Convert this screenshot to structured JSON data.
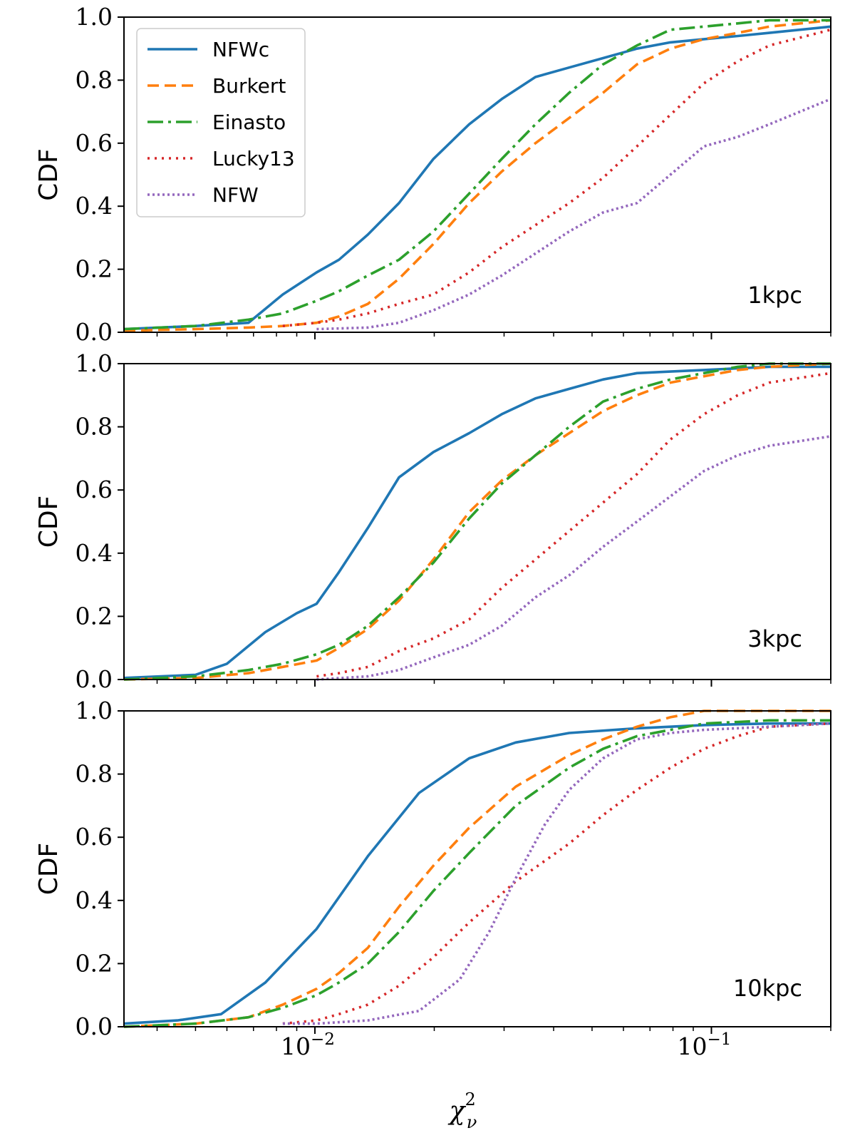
{
  "chart_data": [
    {
      "type": "line",
      "annotation": "1kpc",
      "ylabel": "CDF",
      "xlabel": "",
      "xscale": "log",
      "xlim": [
        0.0033,
        0.2
      ],
      "ylim": [
        0.0,
        1.0
      ],
      "yticks": [
        "0.0",
        "0.2",
        "0.4",
        "0.6",
        "0.8",
        "1.0"
      ],
      "xticks": [],
      "legend": {
        "placement": "upper-left",
        "entries": [
          "NFWc",
          "Burkert",
          "Einasto",
          "Lucky13",
          "NFW"
        ]
      },
      "series": [
        {
          "name": "NFWc",
          "x": [
            0.0033,
            0.005,
            0.0068,
            0.0083,
            0.0101,
            0.0115,
            0.0136,
            0.0163,
            0.0199,
            0.0245,
            0.0296,
            0.036,
            0.0438,
            0.0533,
            0.0649,
            0.0788,
            0.0958,
            0.1165,
            0.14,
            0.2
          ],
          "values": [
            0.01,
            0.02,
            0.03,
            0.12,
            0.19,
            0.23,
            0.31,
            0.41,
            0.55,
            0.66,
            0.74,
            0.81,
            0.84,
            0.87,
            0.9,
            0.92,
            0.93,
            0.94,
            0.95,
            0.97
          ]
        }
      ]
    }
  ],
  "panels": [
    {
      "annotation": "1kpc",
      "series": [
        {
          "name": "NFWc",
          "color": "#1f77b4",
          "dash": "",
          "x": [
            0.0033,
            0.005,
            0.0068,
            0.0083,
            0.0101,
            0.0115,
            0.0136,
            0.0163,
            0.0199,
            0.0245,
            0.0296,
            0.036,
            0.0438,
            0.0533,
            0.0649,
            0.0788,
            0.0958,
            0.1165,
            0.14,
            0.2
          ],
          "y": [
            0.01,
            0.02,
            0.03,
            0.12,
            0.19,
            0.23,
            0.31,
            0.41,
            0.55,
            0.66,
            0.74,
            0.81,
            0.84,
            0.87,
            0.9,
            0.92,
            0.93,
            0.94,
            0.95,
            0.97
          ]
        },
        {
          "name": "Burkert",
          "color": "#ff7f0e",
          "dash": "",
          "x": [
            0.0033,
            0.005,
            0.0068,
            0.0083,
            0.0101,
            0.0115,
            0.0136,
            0.0163,
            0.0199,
            0.0245,
            0.0296,
            0.036,
            0.0438,
            0.0533,
            0.0649,
            0.0788,
            0.0958,
            0.1165,
            0.14,
            0.2
          ],
          "y": [
            0.005,
            0.01,
            0.015,
            0.02,
            0.03,
            0.05,
            0.09,
            0.17,
            0.28,
            0.41,
            0.51,
            0.6,
            0.68,
            0.76,
            0.85,
            0.9,
            0.93,
            0.95,
            0.97,
            0.99
          ]
        },
        {
          "name": "Einasto",
          "color": "#2ca02c",
          "dash": "",
          "x": [
            0.0033,
            0.005,
            0.0068,
            0.0083,
            0.0101,
            0.0115,
            0.0136,
            0.0163,
            0.0199,
            0.0245,
            0.0296,
            0.036,
            0.0438,
            0.0533,
            0.0649,
            0.0788,
            0.0958,
            0.1165,
            0.14,
            0.2
          ],
          "y": [
            0.01,
            0.02,
            0.04,
            0.06,
            0.1,
            0.13,
            0.18,
            0.23,
            0.32,
            0.44,
            0.55,
            0.66,
            0.76,
            0.85,
            0.91,
            0.96,
            0.97,
            0.98,
            0.99,
            0.99
          ]
        },
        {
          "name": "Lucky13",
          "color": "#d62728",
          "dash": "",
          "x": [
            0.0083,
            0.0101,
            0.0115,
            0.0136,
            0.0163,
            0.0199,
            0.0245,
            0.0296,
            0.036,
            0.0438,
            0.0533,
            0.0649,
            0.0788,
            0.0958,
            0.1165,
            0.14,
            0.2
          ],
          "y": [
            0.02,
            0.03,
            0.04,
            0.06,
            0.09,
            0.12,
            0.19,
            0.27,
            0.34,
            0.41,
            0.49,
            0.59,
            0.69,
            0.79,
            0.86,
            0.91,
            0.96
          ]
        },
        {
          "name": "NFW",
          "color": "#9467bd",
          "dash": "",
          "x": [
            0.0101,
            0.0136,
            0.0163,
            0.0199,
            0.0245,
            0.0296,
            0.036,
            0.0438,
            0.0533,
            0.0649,
            0.0788,
            0.0958,
            0.1165,
            0.14,
            0.2
          ],
          "y": [
            0.01,
            0.015,
            0.03,
            0.07,
            0.12,
            0.18,
            0.25,
            0.32,
            0.38,
            0.41,
            0.5,
            0.59,
            0.62,
            0.66,
            0.74
          ]
        }
      ]
    },
    {
      "annotation": "3kpc",
      "series": [
        {
          "name": "NFWc",
          "color": "#1f77b4",
          "dash": "",
          "x": [
            0.0033,
            0.005,
            0.006,
            0.0075,
            0.009,
            0.0101,
            0.0115,
            0.0136,
            0.0163,
            0.0199,
            0.0245,
            0.0296,
            0.036,
            0.0438,
            0.0533,
            0.0649,
            0.0788,
            0.0958,
            0.1165,
            0.14,
            0.2
          ],
          "y": [
            0.005,
            0.015,
            0.05,
            0.15,
            0.21,
            0.24,
            0.34,
            0.48,
            0.64,
            0.72,
            0.78,
            0.84,
            0.89,
            0.92,
            0.95,
            0.97,
            0.975,
            0.98,
            0.985,
            0.99,
            0.99
          ]
        },
        {
          "name": "Burkert",
          "color": "#ff7f0e",
          "dash": "",
          "x": [
            0.0033,
            0.005,
            0.0068,
            0.0083,
            0.0101,
            0.0115,
            0.0136,
            0.0163,
            0.0199,
            0.0245,
            0.0296,
            0.036,
            0.0438,
            0.0533,
            0.0649,
            0.0788,
            0.0958,
            0.1165,
            0.14,
            0.2
          ],
          "y": [
            0.0,
            0.005,
            0.02,
            0.04,
            0.06,
            0.1,
            0.16,
            0.25,
            0.38,
            0.53,
            0.63,
            0.71,
            0.78,
            0.85,
            0.9,
            0.94,
            0.96,
            0.98,
            0.99,
            1.0
          ]
        },
        {
          "name": "Einasto",
          "color": "#2ca02c",
          "dash": "",
          "x": [
            0.0033,
            0.005,
            0.0068,
            0.0083,
            0.0101,
            0.0115,
            0.0136,
            0.0163,
            0.0199,
            0.0245,
            0.0296,
            0.036,
            0.0438,
            0.0533,
            0.0649,
            0.0788,
            0.0958,
            0.1165,
            0.14,
            0.2
          ],
          "y": [
            0.0,
            0.01,
            0.03,
            0.05,
            0.08,
            0.11,
            0.17,
            0.26,
            0.37,
            0.51,
            0.62,
            0.71,
            0.8,
            0.88,
            0.92,
            0.95,
            0.97,
            0.99,
            1.0,
            1.0
          ]
        },
        {
          "name": "Lucky13",
          "color": "#d62728",
          "dash": "",
          "x": [
            0.0101,
            0.0115,
            0.0136,
            0.0163,
            0.0199,
            0.0245,
            0.0296,
            0.036,
            0.0438,
            0.0533,
            0.0649,
            0.0788,
            0.0958,
            0.1165,
            0.14,
            0.2
          ],
          "y": [
            0.01,
            0.02,
            0.04,
            0.09,
            0.13,
            0.19,
            0.29,
            0.38,
            0.47,
            0.56,
            0.65,
            0.76,
            0.84,
            0.9,
            0.94,
            0.97
          ]
        },
        {
          "name": "NFW",
          "color": "#9467bd",
          "dash": "",
          "x": [
            0.0101,
            0.0136,
            0.0163,
            0.0199,
            0.0245,
            0.0296,
            0.036,
            0.0438,
            0.0533,
            0.0649,
            0.0788,
            0.0958,
            0.1165,
            0.14,
            0.2
          ],
          "y": [
            0.0,
            0.01,
            0.03,
            0.07,
            0.11,
            0.17,
            0.26,
            0.33,
            0.42,
            0.5,
            0.58,
            0.66,
            0.71,
            0.74,
            0.77
          ]
        }
      ]
    },
    {
      "annotation": "10kpc",
      "series": [
        {
          "name": "NFWc",
          "color": "#1f77b4",
          "dash": "",
          "x": [
            0.0033,
            0.0045,
            0.0058,
            0.0075,
            0.0101,
            0.0136,
            0.0183,
            0.0245,
            0.0321,
            0.0438,
            0.0649,
            0.0958,
            0.14,
            0.2
          ],
          "y": [
            0.01,
            0.02,
            0.04,
            0.14,
            0.31,
            0.54,
            0.74,
            0.85,
            0.9,
            0.93,
            0.945,
            0.955,
            0.96,
            0.96
          ]
        },
        {
          "name": "Burkert",
          "color": "#ff7f0e",
          "dash": "",
          "x": [
            0.0033,
            0.005,
            0.0068,
            0.0083,
            0.0101,
            0.0115,
            0.0136,
            0.0163,
            0.0199,
            0.0245,
            0.0321,
            0.0438,
            0.0533,
            0.0649,
            0.0788,
            0.0958,
            0.1165,
            0.14,
            0.2
          ],
          "y": [
            0.0,
            0.01,
            0.03,
            0.07,
            0.12,
            0.17,
            0.25,
            0.38,
            0.51,
            0.63,
            0.76,
            0.86,
            0.91,
            0.95,
            0.98,
            1.0,
            1.0,
            1.0,
            1.0
          ]
        },
        {
          "name": "Einasto",
          "color": "#2ca02c",
          "dash": "",
          "x": [
            0.0033,
            0.005,
            0.0068,
            0.0083,
            0.0101,
            0.0115,
            0.0136,
            0.0163,
            0.0199,
            0.0245,
            0.0321,
            0.0438,
            0.0533,
            0.0649,
            0.0788,
            0.0958,
            0.1165,
            0.14,
            0.2
          ],
          "y": [
            0.0,
            0.01,
            0.03,
            0.06,
            0.1,
            0.14,
            0.2,
            0.3,
            0.43,
            0.55,
            0.7,
            0.82,
            0.88,
            0.92,
            0.94,
            0.96,
            0.965,
            0.97,
            0.97
          ]
        },
        {
          "name": "Lucky13",
          "color": "#d62728",
          "dash": "",
          "x": [
            0.0083,
            0.0101,
            0.0115,
            0.0136,
            0.0163,
            0.0199,
            0.0245,
            0.0321,
            0.0438,
            0.0533,
            0.0649,
            0.0788,
            0.0958,
            0.1165,
            0.14,
            0.2
          ],
          "y": [
            0.01,
            0.02,
            0.04,
            0.07,
            0.13,
            0.22,
            0.33,
            0.46,
            0.58,
            0.67,
            0.75,
            0.82,
            0.88,
            0.92,
            0.95,
            0.96
          ]
        },
        {
          "name": "NFW",
          "color": "#9467bd",
          "dash": "",
          "x": [
            0.0083,
            0.0101,
            0.0136,
            0.0183,
            0.0232,
            0.0275,
            0.0321,
            0.038,
            0.0438,
            0.0533,
            0.0649,
            0.0788,
            0.0958,
            0.14,
            0.2
          ],
          "y": [
            0.01,
            0.01,
            0.02,
            0.05,
            0.15,
            0.3,
            0.47,
            0.64,
            0.75,
            0.85,
            0.91,
            0.93,
            0.94,
            0.95,
            0.96
          ]
        }
      ]
    }
  ],
  "axes": {
    "ylabel": "CDF",
    "yticks": [
      "0.0",
      "0.2",
      "0.4",
      "0.6",
      "0.8",
      "1.0"
    ],
    "xtick_labels": [
      {
        "base": "10",
        "exp": "−2"
      },
      {
        "base": "10",
        "exp": "−1"
      }
    ],
    "xlabel": {
      "symbol": "χ",
      "sup": "2",
      "sub": "ν"
    }
  },
  "legend": {
    "entries": [
      {
        "label": "NFWc",
        "color": "#1f77b4",
        "style": "solid"
      },
      {
        "label": "Burkert",
        "color": "#ff7f0e",
        "style": "dashed"
      },
      {
        "label": "Einasto",
        "color": "#2ca02c",
        "style": "dashdot"
      },
      {
        "label": "Lucky13",
        "color": "#d62728",
        "style": "dotted"
      },
      {
        "label": "NFW",
        "color": "#9467bd",
        "style": "dotted"
      }
    ]
  }
}
